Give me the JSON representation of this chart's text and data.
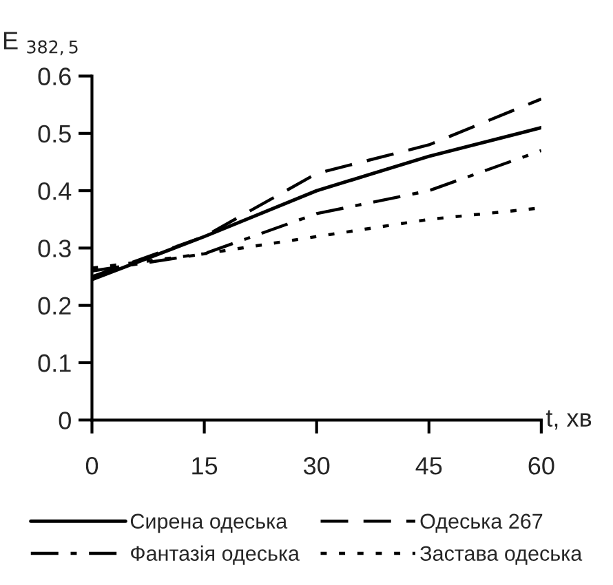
{
  "chart_data": {
    "type": "line",
    "xlabel": "t, хв",
    "ylabel": "E $_{382,5}$",
    "x": [
      0,
      15,
      30,
      45,
      60
    ],
    "series": [
      {
        "name": "Сирена одеська",
        "color": "#000000",
        "line_style": "solid",
        "values": [
          0.245,
          0.32,
          0.4,
          0.46,
          0.51
        ]
      },
      {
        "name": "Одеська 267",
        "color": "#000000",
        "line_style": "dashed",
        "values": [
          0.25,
          0.32,
          0.43,
          0.48,
          0.56
        ]
      },
      {
        "name": "Фантазія одеська",
        "color": "#000000",
        "line_style": "dashdot",
        "values": [
          0.26,
          0.29,
          0.36,
          0.4,
          0.47
        ]
      },
      {
        "name": "Застава одеська",
        "color": "#000000",
        "line_style": "dotted",
        "values": [
          0.265,
          0.29,
          0.32,
          0.35,
          0.37
        ]
      }
    ],
    "xlim": [
      0,
      60
    ],
    "xticks": [
      0,
      15,
      30,
      45,
      60
    ],
    "ylim": [
      0,
      0.6
    ],
    "yticks": [
      0,
      0.1,
      0.2,
      0.3,
      0.4,
      0.5,
      0.6
    ],
    "grid": false,
    "legend": "bottom",
    "marker": "none"
  }
}
